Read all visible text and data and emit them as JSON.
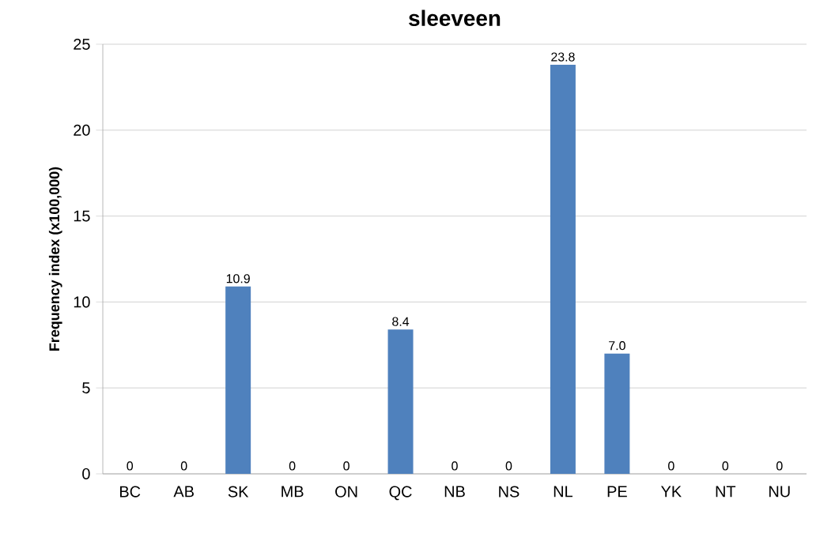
{
  "chart_data": {
    "type": "bar",
    "title": "sleeveen",
    "ylabel": "Frequency index (x100,000)",
    "categories": [
      "BC",
      "AB",
      "SK",
      "MB",
      "ON",
      "QC",
      "NB",
      "NS",
      "NL",
      "PE",
      "YK",
      "NT",
      "NU"
    ],
    "values": [
      0,
      0,
      10.9,
      0,
      0,
      8.4,
      0,
      0,
      23.8,
      7.0,
      0,
      0,
      0
    ],
    "value_labels": [
      "0",
      "0",
      "10.9",
      "0",
      "0",
      "8.4",
      "0",
      "0",
      "23.8",
      "7.0",
      "0",
      "0",
      "0"
    ],
    "color": "#4f81bd",
    "ylim": [
      0,
      25
    ],
    "yticks": [
      0,
      5,
      10,
      15,
      20,
      25
    ],
    "grid": "y"
  }
}
